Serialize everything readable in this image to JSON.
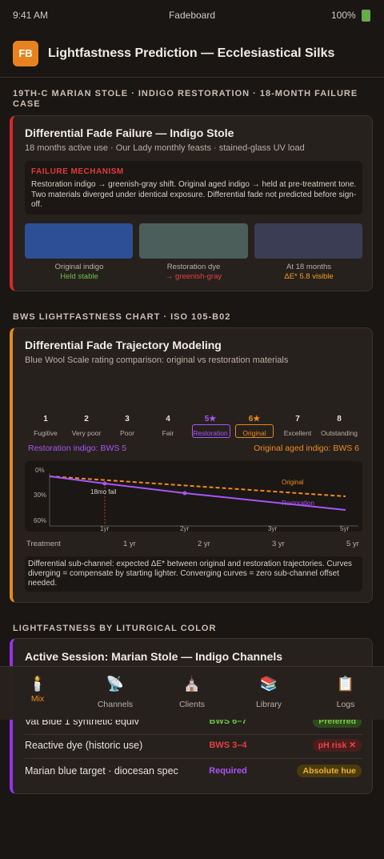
{
  "status_bar": {
    "time": "9:41 AM",
    "app": "Fadeboard",
    "battery": "100%"
  },
  "header": {
    "logo": "FB",
    "title": "Lightfastness Prediction — Ecclesiastical Silks"
  },
  "section_1": {
    "label": "19TH-C MARIAN STOLE · INDIGO RESTORATION · 18-MONTH FAILURE CASE",
    "card": {
      "title": "Differential Fade Failure — Indigo Stole",
      "subtitle": "18 months active use · Our Lady monthly feasts · stained-glass UV load",
      "mechanism": {
        "label": "FAILURE MECHANISM",
        "text": "Restoration indigo → greenish-gray shift. Original aged indigo → held at pre-treatment tone. Two materials diverged under identical exposure. Differential fade not predicted before sign-off."
      },
      "swatches": [
        {
          "label": "Original indigo",
          "status": "Held stable"
        },
        {
          "label": "Restoration dye",
          "status": "→ greenish-gray"
        },
        {
          "label": "At 18 months",
          "status": "ΔE* 5.8 visible"
        }
      ]
    }
  },
  "section_2": {
    "label": "BWS LIGHTFASTNESS CHART · ISO 105-B02",
    "card": {
      "title": "Differential Fade Trajectory Modeling",
      "subtitle": "Blue Wool Scale rating comparison: original vs restoration materials",
      "scale": [
        {
          "num": "1",
          "label": "Fugitive"
        },
        {
          "num": "2",
          "label": "Very poor"
        },
        {
          "num": "3",
          "label": "Poor"
        },
        {
          "num": "4",
          "label": "Fair"
        },
        {
          "num": "5★",
          "label": "Restoration"
        },
        {
          "num": "6★",
          "label": "Original"
        },
        {
          "num": "7",
          "label": "Excellent"
        },
        {
          "num": "8",
          "label": "Outstanding"
        }
      ],
      "restoration_rating": "Restoration indigo: BWS 5",
      "original_rating": "Original aged indigo: BWS 6",
      "chart": {
        "y_labels": [
          "0%",
          "30%",
          "60%"
        ],
        "x_labels": [
          "1yr",
          "2yr",
          "3yr",
          "5yr"
        ],
        "annotation": "18mo fail",
        "line_original": "Original",
        "line_restoration": "Restoration"
      },
      "timeline": [
        "Treatment",
        "1 yr",
        "2 yr",
        "3 yr",
        "5 yr"
      ],
      "note": "Differential sub-channel: expected ΔE* between original and restoration trajectories. Curves diverging = compensate by starting lighter. Converging curves = zero sub-channel offset needed."
    }
  },
  "section_3": {
    "label": "LIGHTFASTNESS BY LITURGICAL COLOR",
    "card": {
      "title": "Active Session: Marian Stole — Indigo Channels",
      "rows": [
        [
          "Vat Blue 1 synthetic equiv",
          "BWS 6–7",
          "Preferred"
        ],
        [
          "Reactive dye (historic use)",
          "BWS 3–4",
          "pH risk ✕"
        ],
        [
          "Marian blue target · diocesan spec",
          "Required",
          "Absolute hue"
        ]
      ]
    }
  },
  "tab_bar": [
    {
      "icon": "🕯️",
      "label": "Mix"
    },
    {
      "icon": "📡",
      "label": "Channels"
    },
    {
      "icon": "⛪",
      "label": "Clients"
    },
    {
      "icon": "📚",
      "label": "Library"
    },
    {
      "icon": "📋",
      "label": "Logs"
    }
  ]
}
